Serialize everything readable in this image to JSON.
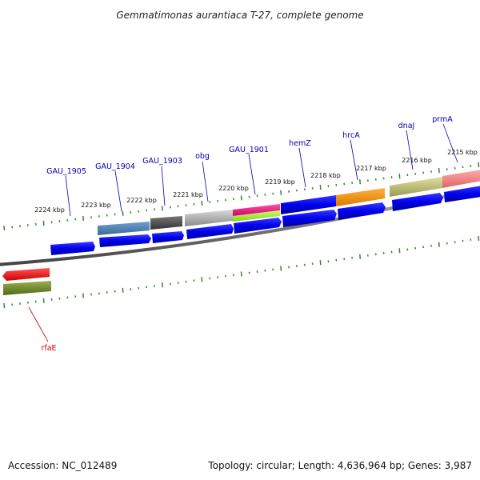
{
  "title": "Gemmatimonas aurantiaca T-27, complete genome",
  "footer": {
    "accession": "Accession: NC_012489",
    "summary": "Topology: circular; Length: 4,636,964 bp; Genes: 3,987"
  },
  "kbp_labels": [
    "2224 kbp",
    "2223 kbp",
    "2222 kbp",
    "2221 kbp",
    "2220 kbp",
    "2219 kbp",
    "2218 kbp",
    "2217 kbp",
    "2216 kbp",
    "2215 kbp"
  ],
  "gene_labels": [
    "GAU_1905",
    "GAU_1904",
    "GAU_1903",
    "obg",
    "GAU_1901",
    "hemZ",
    "hrcA",
    "dnaJ",
    "prmA",
    "rfaE"
  ],
  "colors": {
    "gene_label": "#0000b0",
    "rfaE_label": "#cc0000",
    "ticks": "#2a8a2a",
    "backbone": "#808080",
    "cds": "#0000ee"
  }
}
